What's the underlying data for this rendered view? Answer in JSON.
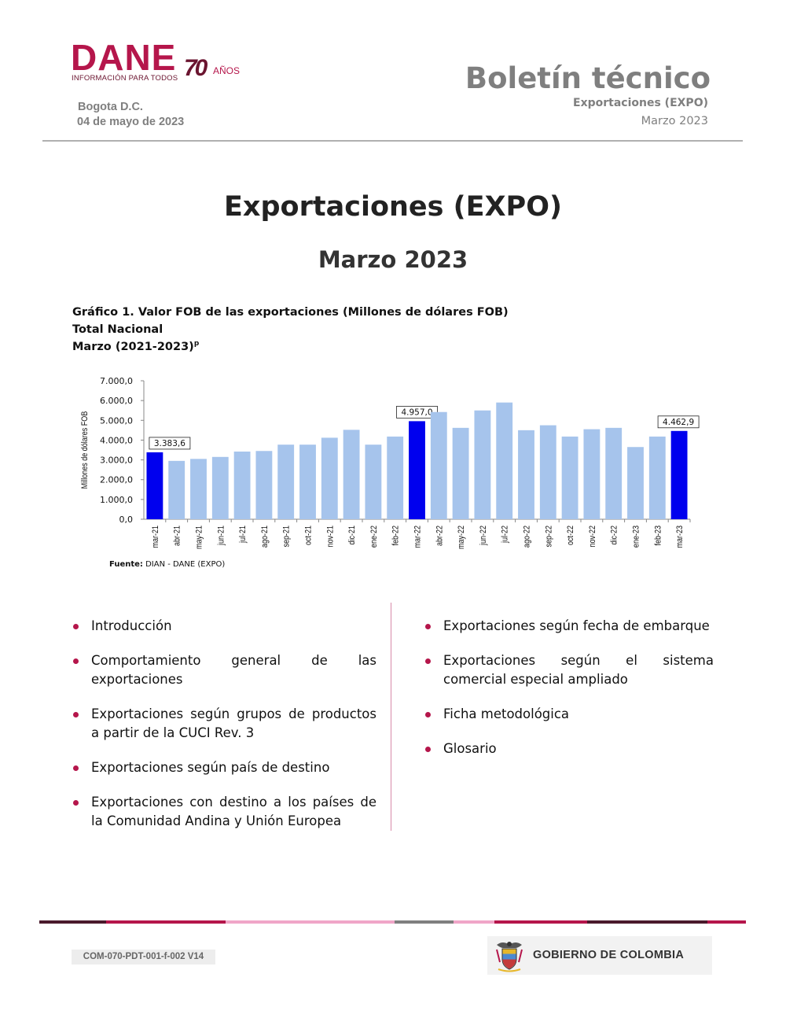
{
  "header": {
    "logo_text": "DANE",
    "logo_subtitle": "INFORMACIÓN PARA TODOS",
    "anniversary_number": "70",
    "anniversary_text": "AÑOS",
    "city": "Bogota D.C.",
    "date": "04 de mayo de 2023",
    "bulletin_title": "Boletín técnico",
    "bulletin_subtitle": "Exportaciones (EXPO)",
    "bulletin_period": "Marzo 2023"
  },
  "main": {
    "title": "Exportaciones (EXPO)",
    "subtitle": "Marzo 2023"
  },
  "chart_caption": {
    "line1": "Gráfico 1. Valor FOB de las exportaciones (Millones de dólares FOB)",
    "line2": "Total Nacional",
    "line3": "Marzo (2021-2023)",
    "line3_sup": "p"
  },
  "chart_data": {
    "type": "bar",
    "ylabel": "Millones de dólares FOB",
    "ylim": [
      0,
      7000
    ],
    "yticks": [
      "0,0",
      "1.000,0",
      "2.000,0",
      "3.000,0",
      "4.000,0",
      "5.000,0",
      "6.000,0",
      "7.000,0"
    ],
    "categories": [
      "mar-21",
      "abr-21",
      "may-21",
      "jun-21",
      "jul-21",
      "ago-21",
      "sep-21",
      "oct-21",
      "nov-21",
      "dic-21",
      "ene-22",
      "feb-22",
      "mar-22",
      "abr-22",
      "may-22",
      "jun-22",
      "jul-22",
      "ago-22",
      "sep-22",
      "oct-22",
      "nov-22",
      "dic-22",
      "ene-23",
      "feb-23",
      "mar-23"
    ],
    "values": [
      3383.6,
      2950,
      3050,
      3150,
      3420,
      3450,
      3770,
      3770,
      4120,
      4520,
      3770,
      4180,
      4957.0,
      5420,
      4620,
      5500,
      5900,
      4500,
      4750,
      4180,
      4550,
      4620,
      3650,
      4180,
      4462.9
    ],
    "highlighted": [
      "mar-21",
      "mar-22",
      "mar-23"
    ],
    "data_labels": {
      "mar-21": "3.383,6",
      "mar-22": "4.957,0",
      "mar-23": "4.462,9"
    },
    "colors": {
      "highlight": "#0000ee",
      "normal": "#a6c4ec"
    },
    "grid": false
  },
  "source": {
    "label": "Fuente:",
    "text": " DIAN - DANE (EXPO)"
  },
  "contents": {
    "left": [
      "Introducción",
      "Comportamiento general de las exportaciones",
      "Exportaciones según grupos de productos a partir de la CUCI Rev. 3",
      "Exportaciones según país de destino",
      "Exportaciones con destino a los países de la Comunidad Andina y Unión Europea"
    ],
    "right": [
      "Exportaciones según fecha de embarque",
      "Exportaciones según el sistema comercial especial ampliado",
      "Ficha metodológica",
      "Glosario"
    ],
    "bullet_color": "#b5164b"
  },
  "footer": {
    "code": "COM-070-PDT-001-f-002 V14",
    "government": "GOBIERNO DE COLOMBIA"
  }
}
